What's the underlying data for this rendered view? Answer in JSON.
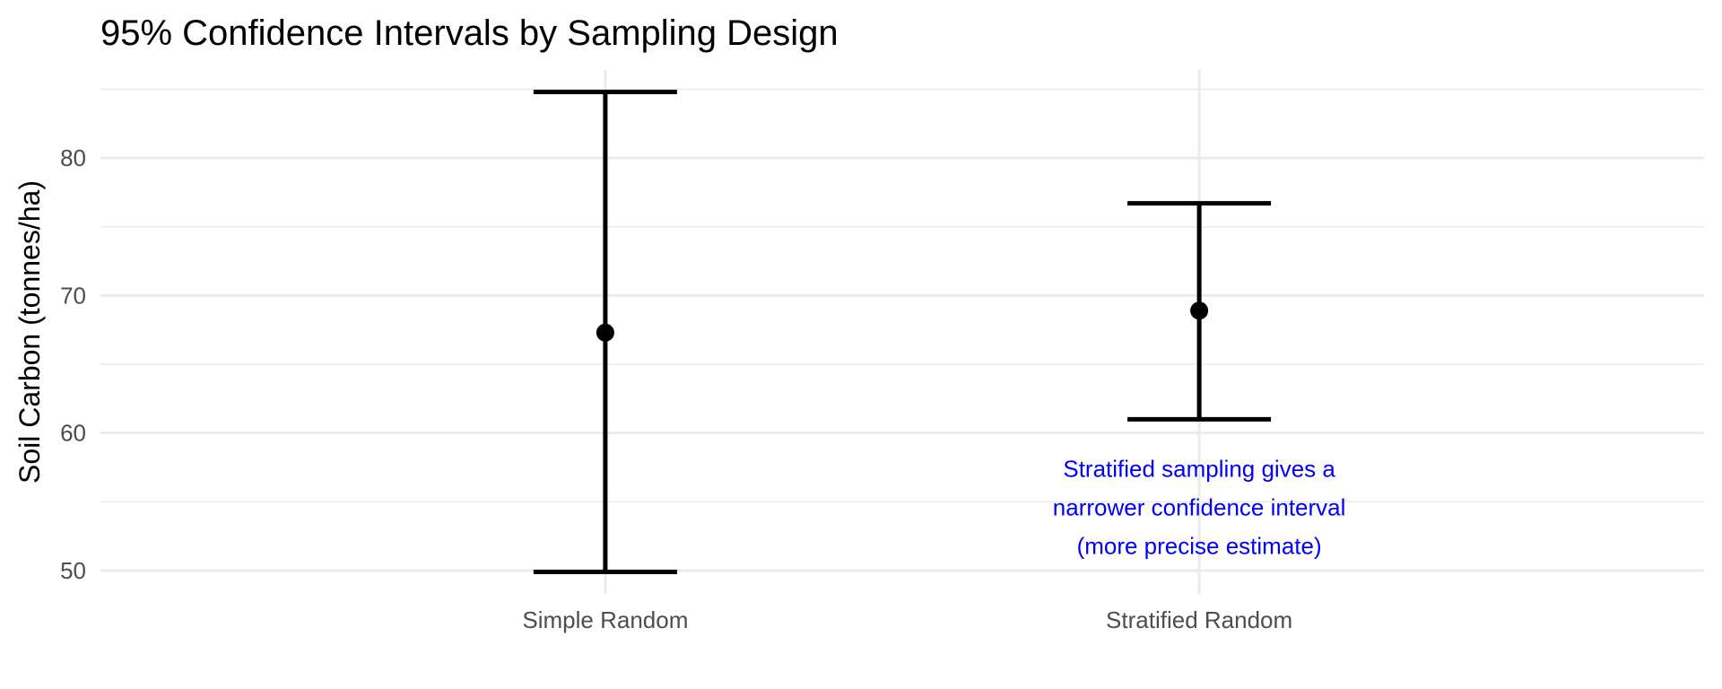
{
  "chart_data": {
    "type": "errorbar",
    "title": "95% Confidence Intervals by Sampling Design",
    "xlabel": "",
    "ylabel": "Soil Carbon (tonnes/ha)",
    "categories": [
      "Simple Random",
      "Stratified Random"
    ],
    "points": [
      {
        "category": "Simple Random",
        "estimate": 67.3,
        "lower": 49.9,
        "upper": 84.8
      },
      {
        "category": "Stratified Random",
        "estimate": 68.9,
        "lower": 61.0,
        "upper": 76.7
      }
    ],
    "ylim": [
      48.3,
      86.4
    ],
    "yticks": [
      50,
      60,
      70,
      80
    ],
    "ytick_labels": [
      "50",
      "60",
      "70",
      "80"
    ],
    "grid": true,
    "legend": "none",
    "annotation": {
      "lines": [
        "Stratified sampling gives a",
        "narrower confidence interval",
        "(more precise estimate)"
      ],
      "category": "Stratified Random",
      "y": 54.6,
      "color": "#0000ff"
    },
    "colors": {
      "marks": "#000000",
      "grid": "#ebebeb",
      "annotation": "#0000ff",
      "tick_text": "#4d4d4d"
    }
  }
}
